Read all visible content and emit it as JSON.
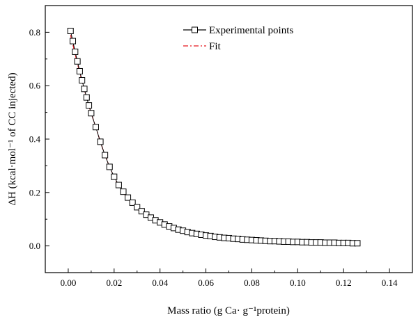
{
  "chart_data": {
    "type": "scatter",
    "title": "",
    "xlabel": "Mass ratio (g Ca· g⁻¹protein)",
    "ylabel": "ΔH (kcal·mol⁻¹ of CC injected)",
    "xlim": [
      -0.01,
      0.15
    ],
    "ylim": [
      -0.1,
      0.9
    ],
    "xticks": [
      0.0,
      0.02,
      0.04,
      0.06,
      0.08,
      0.1,
      0.12,
      0.14
    ],
    "xtick_labels": [
      "0.00",
      "0.02",
      "0.04",
      "0.06",
      "0.08",
      "0.10",
      "0.12",
      "0.14"
    ],
    "yticks": [
      0.0,
      0.2,
      0.4,
      0.6,
      0.8
    ],
    "ytick_labels": [
      "0.0",
      "0.2",
      "0.4",
      "0.6",
      "0.8"
    ],
    "legend_position": "top-right",
    "series": [
      {
        "name": "Experimental points",
        "style": "black line with open square markers",
        "color": "#000000",
        "x": [
          0.001,
          0.002,
          0.003,
          0.004,
          0.005,
          0.006,
          0.007,
          0.008,
          0.009,
          0.01,
          0.012,
          0.014,
          0.016,
          0.018,
          0.02,
          0.022,
          0.024,
          0.026,
          0.028,
          0.03,
          0.032,
          0.034,
          0.036,
          0.038,
          0.04,
          0.042,
          0.044,
          0.046,
          0.048,
          0.05,
          0.052,
          0.054,
          0.056,
          0.058,
          0.06,
          0.062,
          0.064,
          0.066,
          0.068,
          0.07,
          0.072,
          0.074,
          0.076,
          0.078,
          0.08,
          0.082,
          0.084,
          0.086,
          0.088,
          0.09,
          0.092,
          0.094,
          0.096,
          0.098,
          0.1,
          0.102,
          0.104,
          0.106,
          0.108,
          0.11,
          0.112,
          0.114,
          0.116,
          0.118,
          0.12,
          0.122,
          0.124,
          0.126
        ],
        "y": [
          0.805,
          0.767,
          0.727,
          0.691,
          0.654,
          0.62,
          0.588,
          0.556,
          0.526,
          0.497,
          0.445,
          0.39,
          0.34,
          0.296,
          0.259,
          0.228,
          0.203,
          0.181,
          0.162,
          0.145,
          0.13,
          0.117,
          0.106,
          0.096,
          0.088,
          0.08,
          0.073,
          0.067,
          0.061,
          0.057,
          0.052,
          0.048,
          0.045,
          0.042,
          0.039,
          0.037,
          0.034,
          0.032,
          0.03,
          0.029,
          0.027,
          0.026,
          0.024,
          0.023,
          0.022,
          0.021,
          0.02,
          0.019,
          0.018,
          0.018,
          0.017,
          0.016,
          0.016,
          0.015,
          0.015,
          0.014,
          0.014,
          0.013,
          0.013,
          0.013,
          0.012,
          0.012,
          0.012,
          0.011,
          0.011,
          0.011,
          0.01,
          0.01
        ]
      },
      {
        "name": "Fit",
        "style": "red dash-dot line",
        "color": "#e8141b",
        "x": [
          0.001,
          0.002,
          0.003,
          0.004,
          0.005,
          0.006,
          0.007,
          0.008,
          0.009,
          0.01,
          0.012,
          0.014,
          0.016,
          0.018,
          0.02,
          0.022,
          0.024,
          0.026,
          0.028,
          0.03,
          0.032,
          0.034,
          0.036,
          0.038,
          0.04,
          0.042,
          0.044,
          0.046,
          0.048,
          0.05,
          0.052,
          0.054,
          0.056,
          0.058,
          0.06,
          0.062,
          0.064,
          0.066,
          0.068,
          0.07,
          0.072,
          0.074,
          0.076,
          0.078,
          0.08,
          0.082,
          0.084,
          0.086,
          0.088,
          0.09,
          0.092,
          0.094,
          0.096,
          0.098,
          0.1,
          0.102,
          0.104,
          0.106,
          0.108,
          0.11,
          0.112,
          0.114,
          0.116,
          0.118,
          0.12,
          0.122,
          0.124,
          0.126
        ],
        "y": [
          0.79,
          0.755,
          0.718,
          0.683,
          0.649,
          0.616,
          0.585,
          0.554,
          0.525,
          0.497,
          0.445,
          0.39,
          0.34,
          0.296,
          0.258,
          0.226,
          0.199,
          0.176,
          0.156,
          0.139,
          0.125,
          0.112,
          0.101,
          0.091,
          0.083,
          0.075,
          0.068,
          0.062,
          0.057,
          0.052,
          0.048,
          0.044,
          0.041,
          0.038,
          0.035,
          0.032,
          0.03,
          0.028,
          0.026,
          0.024,
          0.022,
          0.021,
          0.019,
          0.018,
          0.017,
          0.016,
          0.015,
          0.014,
          0.013,
          0.012,
          0.011,
          0.01,
          0.01,
          0.009,
          0.008,
          0.008,
          0.007,
          0.007,
          0.006,
          0.006,
          0.005,
          0.005,
          0.004,
          0.004,
          0.004,
          0.003,
          0.003,
          0.003
        ]
      }
    ]
  }
}
